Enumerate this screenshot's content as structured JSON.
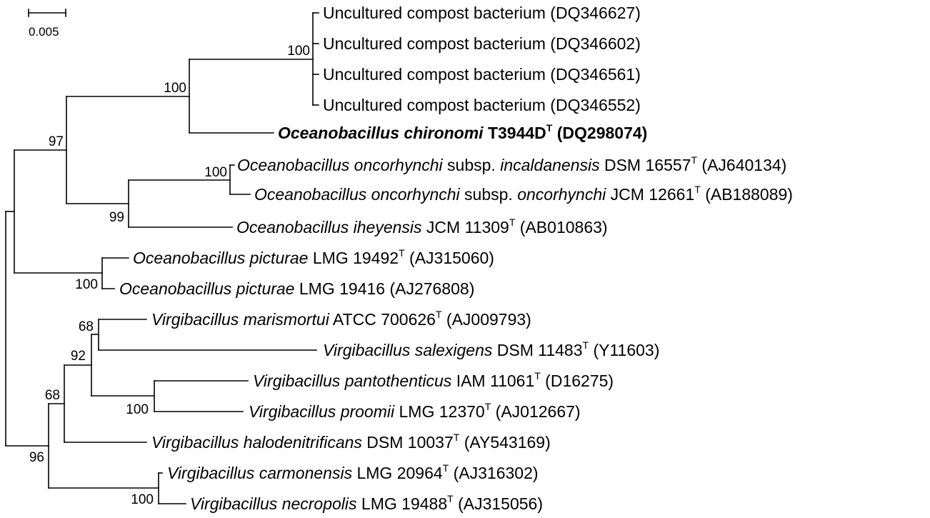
{
  "scale_bar": {
    "label": "0.005"
  },
  "taxa": [
    {
      "id": "t1",
      "plain": "Uncultured compost bacterium (DQ346627)"
    },
    {
      "id": "t2",
      "plain": "Uncultured compost bacterium (DQ346602)"
    },
    {
      "id": "t3",
      "plain": "Uncultured compost bacterium (DQ346561)"
    },
    {
      "id": "t4",
      "plain": "Uncultured compost bacterium (DQ346552)"
    },
    {
      "id": "t5",
      "italic": "Oceanobacillus chironomi",
      "strain": "T3944D",
      "type_strain": true,
      "accession": "(DQ298074)",
      "bold": true
    },
    {
      "id": "t6",
      "italic": "Oceanobacillus oncorhynchi",
      "subsp": "incaldanensis",
      "strain": "DSM 16557",
      "type_strain": true,
      "accession": "(AJ640134)"
    },
    {
      "id": "t7",
      "italic": "Oceanobacillus oncorhynchi",
      "subsp": "oncorhynchi",
      "strain": "JCM 12661",
      "type_strain": true,
      "accession": "(AB188089)"
    },
    {
      "id": "t8",
      "italic": "Oceanobacillus iheyensis",
      "strain": "JCM 11309",
      "type_strain": true,
      "accession": "(AB010863)"
    },
    {
      "id": "t9",
      "italic": "Oceanobacillus picturae",
      "strain": "LMG 19492",
      "type_strain": true,
      "accession": "(AJ315060)"
    },
    {
      "id": "t10",
      "italic": "Oceanobacillus picturae",
      "strain": "LMG 19416",
      "type_strain": false,
      "accession": "(AJ276808)"
    },
    {
      "id": "t11",
      "italic": "Virgibacillus marismortui",
      "strain": "ATCC 700626",
      "type_strain": true,
      "accession": "(AJ009793)"
    },
    {
      "id": "t12",
      "italic": "Virgibacillus salexigens",
      "strain": "DSM 11483",
      "type_strain": true,
      "accession": "(Y11603)"
    },
    {
      "id": "t13",
      "italic": "Virgibacillus pantothenticus",
      "strain": "IAM 11061",
      "type_strain": true,
      "accession": "(D16275)"
    },
    {
      "id": "t14",
      "italic": "Virgibacillus proomii",
      "strain": "LMG 12370",
      "type_strain": true,
      "accession": "(AJ012667)"
    },
    {
      "id": "t15",
      "italic": "Virgibacillus halodenitrificans",
      "strain": "DSM 10037",
      "type_strain": true,
      "accession": "(AY543169)"
    },
    {
      "id": "t16",
      "italic": "Virgibacillus carmonensis",
      "strain": "LMG 20964",
      "type_strain": true,
      "accession": "(AJ316302)"
    },
    {
      "id": "t17",
      "italic": "Virgibacillus necropolis",
      "strain": "LMG 19488",
      "type_strain": true,
      "accession": "(AJ315056)"
    }
  ],
  "type_strain_mark": "T",
  "subsp_abbrev": "subsp.",
  "bootstrap": {
    "uncultured_clade": "100",
    "chironomi_clade": "100",
    "oceanobacillus_main": "97",
    "oncorhynchi_pair": "100",
    "oncorhynchi_iheyensis": "99",
    "picturae_pair": "100",
    "marismortui_salexigens": "68",
    "virgibacillus_inner": "92",
    "pantothenticus_proomii": "100",
    "virgibacillus_mid": "68",
    "virgibacillus_root": "96",
    "carmonensis_necropolis": "100"
  }
}
